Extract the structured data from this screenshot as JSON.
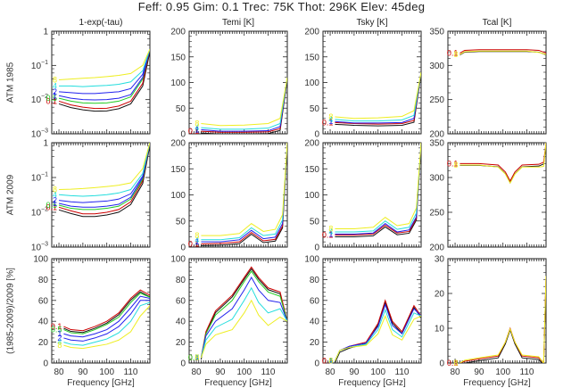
{
  "title": "Feff: 0.95 Gim: 0.1 Trec: 75K Thot: 296K Elev: 45deg",
  "column_titles": [
    "1-exp(-tau)",
    "Temi [K]",
    "Tsky [K]",
    "Tcal [K]"
  ],
  "row_labels": [
    "ATM 1985",
    "ATM 2009",
    "(1985-2009)/2009 [%]"
  ],
  "xlabel": "Frequency [GHz]",
  "x_ticks": [
    "80",
    "90",
    "100",
    "110"
  ],
  "series_colors": {
    "0.1": "#cc0000",
    "0.5": "#22cc22",
    "1": "#2222ee",
    "2": "#2222ee",
    "4": "#22dddd",
    "8": "#eeee22",
    "base": "#111111"
  },
  "chart_data": [
    {
      "type": "line",
      "panel": "ATM 1985 / 1-exp(-tau)",
      "yscale": "log",
      "ylim": [
        0.001,
        1
      ],
      "y_ticks": [
        "10^-3",
        "10^-2",
        "10^-1",
        "1"
      ],
      "x": [
        80,
        85,
        90,
        95,
        100,
        105,
        110,
        115,
        118
      ],
      "series": [
        {
          "name": "0.1",
          "values": [
            0.009,
            0.007,
            0.006,
            0.0055,
            0.0056,
            0.0065,
            0.009,
            0.03,
            0.3
          ]
        },
        {
          "name": "0.5",
          "values": [
            0.011,
            0.009,
            0.008,
            0.0078,
            0.008,
            0.009,
            0.012,
            0.04,
            0.3
          ]
        },
        {
          "name": "1",
          "values": [
            0.013,
            0.011,
            0.01,
            0.0098,
            0.01,
            0.011,
            0.014,
            0.045,
            0.3
          ]
        },
        {
          "name": "2",
          "values": [
            0.017,
            0.016,
            0.015,
            0.015,
            0.016,
            0.017,
            0.021,
            0.055,
            0.3
          ]
        },
        {
          "name": "4",
          "values": [
            0.025,
            0.025,
            0.024,
            0.025,
            0.026,
            0.028,
            0.033,
            0.07,
            0.3
          ]
        },
        {
          "name": "8",
          "values": [
            0.038,
            0.04,
            0.042,
            0.044,
            0.047,
            0.051,
            0.058,
            0.1,
            0.3
          ]
        }
      ]
    },
    {
      "type": "line",
      "panel": "ATM 1985 / Temi [K]",
      "ylim": [
        0,
        200
      ],
      "y_ticks": [
        "0",
        "50",
        "100",
        "150",
        "200"
      ],
      "x": [
        82,
        90,
        100,
        110,
        115,
        118
      ],
      "series": [
        {
          "name": "0.1",
          "values": [
            5,
            3,
            3,
            4,
            10,
            110
          ]
        },
        {
          "name": "1",
          "values": [
            8,
            5,
            5,
            6,
            14,
            110
          ]
        },
        {
          "name": "4",
          "values": [
            12,
            9,
            9,
            11,
            20,
            110
          ]
        },
        {
          "name": "8",
          "values": [
            20,
            16,
            17,
            20,
            30,
            110
          ]
        }
      ]
    },
    {
      "type": "line",
      "panel": "ATM 1985 / Tsky [K]",
      "ylim": [
        0,
        200
      ],
      "y_ticks": [
        "0",
        "50",
        "100",
        "150",
        "200"
      ],
      "x": [
        82,
        90,
        100,
        110,
        115,
        118
      ],
      "series": [
        {
          "name": "0.1",
          "values": [
            22,
            20,
            19,
            20,
            26,
            120
          ]
        },
        {
          "name": "1",
          "values": [
            24,
            21,
            21,
            22,
            30,
            120
          ]
        },
        {
          "name": "4",
          "values": [
            28,
            25,
            25,
            27,
            36,
            120
          ]
        },
        {
          "name": "8",
          "values": [
            33,
            30,
            31,
            34,
            45,
            120
          ]
        }
      ]
    },
    {
      "type": "line",
      "panel": "ATM 1985 / Tcal [K]",
      "ylim": [
        200,
        350
      ],
      "y_ticks": [
        "200",
        "250",
        "300",
        "350"
      ],
      "x": [
        82,
        84,
        90,
        100,
        110,
        115,
        118
      ],
      "series": [
        {
          "name": "0.1",
          "values": [
            318,
            322,
            323,
            323,
            323,
            322,
            318
          ]
        },
        {
          "name": "8",
          "values": [
            316,
            320,
            321,
            321,
            321,
            319,
            316
          ]
        }
      ]
    },
    {
      "type": "line",
      "panel": "ATM 2009 / 1-exp(-tau)",
      "yscale": "log",
      "ylim": [
        0.001,
        1
      ],
      "y_ticks": [
        "10^-3",
        "10^-2",
        "10^-1",
        "1"
      ],
      "x": [
        80,
        85,
        90,
        95,
        100,
        105,
        110,
        115,
        118
      ],
      "series": [
        {
          "name": "0.1",
          "values": [
            0.014,
            0.011,
            0.009,
            0.009,
            0.01,
            0.012,
            0.02,
            0.08,
            1
          ]
        },
        {
          "name": "0.5",
          "values": [
            0.016,
            0.013,
            0.012,
            0.012,
            0.013,
            0.015,
            0.024,
            0.09,
            1
          ]
        },
        {
          "name": "1",
          "values": [
            0.018,
            0.015,
            0.014,
            0.014,
            0.015,
            0.017,
            0.027,
            0.1,
            1
          ]
        },
        {
          "name": "2",
          "values": [
            0.022,
            0.02,
            0.019,
            0.02,
            0.021,
            0.024,
            0.034,
            0.11,
            1
          ]
        },
        {
          "name": "4",
          "values": [
            0.032,
            0.03,
            0.029,
            0.03,
            0.032,
            0.036,
            0.045,
            0.13,
            1
          ]
        },
        {
          "name": "8",
          "values": [
            0.045,
            0.046,
            0.048,
            0.051,
            0.055,
            0.06,
            0.07,
            0.18,
            1
          ]
        }
      ]
    },
    {
      "type": "line",
      "panel": "ATM 2009 / Temi [K]",
      "ylim": [
        0,
        200
      ],
      "y_ticks": [
        "0",
        "50",
        "100",
        "150",
        "200"
      ],
      "x": [
        82,
        90,
        98,
        103,
        108,
        113,
        116,
        118
      ],
      "series": [
        {
          "name": "0.1",
          "values": [
            6,
            7,
            10,
            28,
            12,
            15,
            40,
            200
          ]
        },
        {
          "name": "1",
          "values": [
            10,
            10,
            14,
            32,
            16,
            19,
            45,
            200
          ]
        },
        {
          "name": "4",
          "values": [
            14,
            14,
            18,
            37,
            22,
            25,
            52,
            200
          ]
        },
        {
          "name": "8",
          "values": [
            22,
            22,
            26,
            45,
            30,
            34,
            62,
            200
          ]
        }
      ]
    },
    {
      "type": "line",
      "panel": "ATM 2009 / Tsky [K]",
      "ylim": [
        0,
        200
      ],
      "y_ticks": [
        "0",
        "50",
        "100",
        "150",
        "200"
      ],
      "x": [
        82,
        90,
        98,
        103,
        108,
        113,
        116,
        118
      ],
      "series": [
        {
          "name": "0.1",
          "values": [
            23,
            23,
            25,
            42,
            27,
            30,
            55,
            200
          ]
        },
        {
          "name": "1",
          "values": [
            25,
            25,
            27,
            45,
            29,
            33,
            58,
            200
          ]
        },
        {
          "name": "4",
          "values": [
            29,
            29,
            31,
            50,
            34,
            38,
            65,
            200
          ]
        },
        {
          "name": "8",
          "values": [
            35,
            35,
            38,
            57,
            41,
            45,
            75,
            200
          ]
        }
      ]
    },
    {
      "type": "line",
      "panel": "ATM 2009 / Tcal [K]",
      "ylim": [
        200,
        350
      ],
      "y_ticks": [
        "200",
        "250",
        "300",
        "350"
      ],
      "x": [
        82,
        90,
        98,
        101,
        103,
        105,
        108,
        115,
        117,
        118
      ],
      "series": [
        {
          "name": "0.1",
          "values": [
            320,
            320,
            318,
            308,
            295,
            308,
            318,
            319,
            322,
            350
          ]
        },
        {
          "name": "8",
          "values": [
            318,
            318,
            315,
            305,
            292,
            305,
            315,
            315,
            316,
            350
          ]
        }
      ]
    },
    {
      "type": "line",
      "panel": "(1985-2009)/2009 [%] / 1-exp(-tau)",
      "ylim": [
        0,
        100
      ],
      "y_ticks": [
        "0",
        "20",
        "40",
        "60",
        "80",
        "100"
      ],
      "x": [
        82,
        85,
        90,
        95,
        100,
        105,
        110,
        114,
        118
      ],
      "series": [
        {
          "name": "0.1",
          "values": [
            35,
            32,
            31,
            35,
            40,
            48,
            62,
            70,
            65
          ]
        },
        {
          "name": "0.5",
          "values": [
            32,
            29,
            28,
            32,
            37,
            44,
            58,
            67,
            63
          ]
        },
        {
          "name": "1",
          "values": [
            28,
            26,
            25,
            28,
            32,
            40,
            53,
            64,
            62
          ]
        },
        {
          "name": "2",
          "values": [
            24,
            22,
            21,
            24,
            28,
            35,
            47,
            60,
            60
          ]
        },
        {
          "name": "4",
          "values": [
            20,
            18,
            17,
            20,
            23,
            29,
            40,
            55,
            58
          ]
        },
        {
          "name": "8",
          "values": [
            17,
            15,
            14,
            16,
            18,
            22,
            30,
            45,
            55
          ]
        }
      ]
    },
    {
      "type": "line",
      "panel": "(1985-2009)/2009 [%] / Temi [K]",
      "ylim": [
        0,
        100
      ],
      "y_ticks": [
        "0",
        "20",
        "40",
        "60",
        "80",
        "100"
      ],
      "x": [
        82,
        84,
        88,
        95,
        100,
        103,
        106,
        110,
        115,
        118
      ],
      "series": [
        {
          "name": "0.1",
          "values": [
            5,
            30,
            50,
            65,
            82,
            92,
            82,
            72,
            68,
            40
          ]
        },
        {
          "name": "0.5",
          "values": [
            5,
            28,
            46,
            60,
            78,
            88,
            78,
            68,
            64,
            40
          ]
        },
        {
          "name": "1",
          "values": [
            5,
            26,
            40,
            52,
            70,
            82,
            70,
            60,
            58,
            40
          ]
        },
        {
          "name": "4",
          "values": [
            5,
            22,
            34,
            42,
            60,
            72,
            58,
            48,
            52,
            40
          ]
        },
        {
          "name": "8",
          "values": [
            5,
            18,
            27,
            32,
            48,
            60,
            46,
            36,
            44,
            40
          ]
        }
      ]
    },
    {
      "type": "line",
      "panel": "(1985-2009)/2009 [%] / Tsky [K]",
      "ylim": [
        0,
        100
      ],
      "y_ticks": [
        "0",
        "20",
        "40",
        "60",
        "80",
        "100"
      ],
      "x": [
        82,
        84,
        88,
        95,
        100,
        103,
        106,
        110,
        115,
        118
      ],
      "series": [
        {
          "name": "0.1",
          "values": [
            2,
            12,
            16,
            20,
            38,
            60,
            40,
            30,
            55,
            45
          ]
        },
        {
          "name": "1",
          "values": [
            2,
            12,
            16,
            19,
            35,
            56,
            36,
            28,
            52,
            45
          ]
        },
        {
          "name": "4",
          "values": [
            2,
            12,
            15,
            18,
            32,
            51,
            32,
            25,
            48,
            45
          ]
        },
        {
          "name": "8",
          "values": [
            2,
            12,
            15,
            17,
            28,
            45,
            27,
            22,
            42,
            45
          ]
        }
      ]
    },
    {
      "type": "line",
      "panel": "(1985-2009)/2009 [%] / Tcal [K]",
      "ylim": [
        0,
        30
      ],
      "y_ticks": [
        "0",
        "10",
        "20",
        "30"
      ],
      "x": [
        82,
        84,
        90,
        98,
        101,
        103,
        105,
        108,
        115,
        117,
        118
      ],
      "series": [
        {
          "name": "0.1",
          "values": [
            0,
            0.5,
            1.2,
            2,
            6,
            10,
            6,
            2,
            1.5,
            0,
            25
          ]
        },
        {
          "name": "8",
          "values": [
            0,
            0.8,
            1.5,
            2.3,
            6,
            9.8,
            6,
            2.3,
            1.8,
            0,
            25
          ]
        }
      ]
    }
  ]
}
